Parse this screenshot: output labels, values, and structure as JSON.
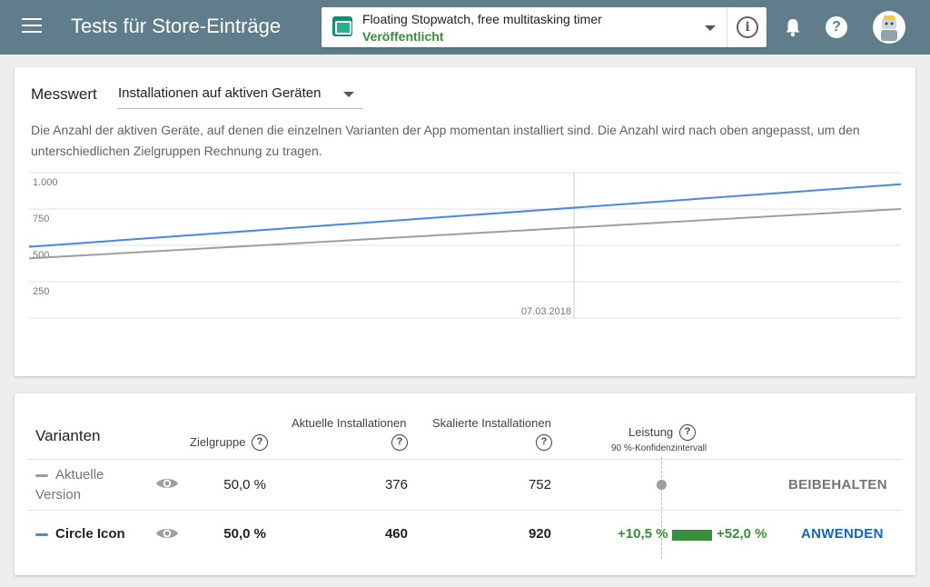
{
  "header": {
    "title": "Tests für Store-Einträge",
    "app": {
      "name": "Floating Stopwatch, free multitasking timer",
      "status": "Veröffentlicht"
    },
    "icons": [
      "menu-icon",
      "info-icon",
      "bell-icon",
      "help-icon",
      "avatar"
    ]
  },
  "metric": {
    "label": "Messwert",
    "selected": "Installationen auf aktiven Geräten",
    "description": "Die Anzahl der aktiven Geräte, auf denen die einzelnen Varianten der App momentan installiert sind. Die Anzahl wird nach oben angepasst, um den unterschiedlichen Zielgruppen Rechnung zu tragen."
  },
  "chart_data": {
    "type": "line",
    "yticks": [
      "1.000",
      "750",
      "500",
      "250"
    ],
    "ylim": [
      0,
      1000
    ],
    "x_marker_label": "07.03.2018",
    "grid": true,
    "series": [
      {
        "color": "#4a86e8",
        "x": [
          0,
          1
        ],
        "values": [
          490,
          920
        ]
      },
      {
        "color": "#9e9e9e",
        "x": [
          0,
          1
        ],
        "values": [
          410,
          750
        ]
      }
    ],
    "x_marker": 0.625
  },
  "variants": {
    "title": "Varianten",
    "columns": {
      "audience": "Zielgruppe",
      "current": "Aktuelle Installationen",
      "scaled": "Skalierte Installationen",
      "performance": "Leistung",
      "performance_sub": "90 %-Konfidenzintervall"
    },
    "rows": [
      {
        "name": "Aktuelle Version",
        "color": "#9e9e9e",
        "audience": "50,0 %",
        "current": "376",
        "scaled": "752",
        "action": "BEIBEHALTEN",
        "action_color": "#757575"
      },
      {
        "name": "Circle Icon",
        "color": "#4a86e8",
        "audience": "50,0 %",
        "current": "460",
        "scaled": "920",
        "perf_low": "+10,5 %",
        "perf_high": "+52,0 %",
        "action": "ANWENDEN",
        "action_color": "#1565c0"
      }
    ]
  }
}
